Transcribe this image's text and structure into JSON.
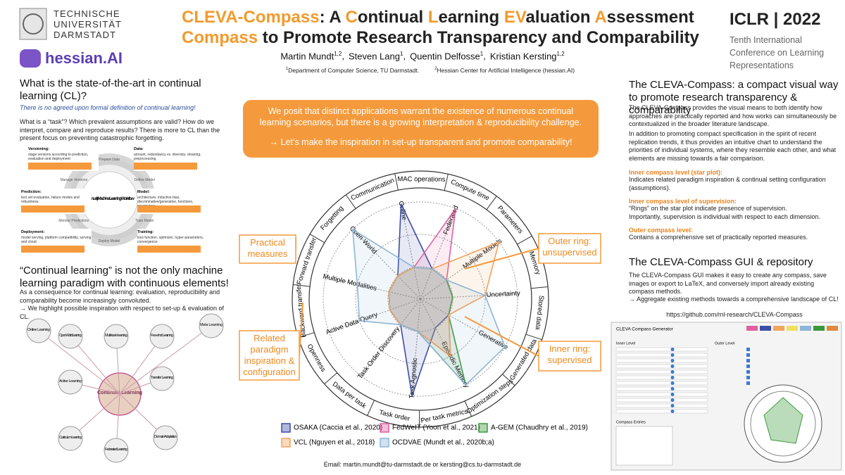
{
  "header": {
    "university": [
      "TECHNISCHE",
      "UNIVERSITÄT",
      "DARMSTADT"
    ],
    "partner": "hessian.AI",
    "title": [
      [
        {
          "text": "CLEVA-Compass",
          "accent": true
        },
        {
          "text": ": A ",
          "accent": false
        },
        {
          "text": "C",
          "accent": true
        },
        {
          "text": "ontinual ",
          "accent": false
        },
        {
          "text": "L",
          "accent": true
        },
        {
          "text": "earning ",
          "accent": false
        },
        {
          "text": "EV",
          "accent": true
        },
        {
          "text": "aluation ",
          "accent": false
        },
        {
          "text": "A",
          "accent": true
        },
        {
          "text": "ssessment",
          "accent": false
        }
      ],
      [
        {
          "text": "Compass",
          "accent": true
        },
        {
          "text": " to Promote Research Transparency and Comparability",
          "accent": false
        }
      ]
    ],
    "accent_color": "#f39a2b",
    "authors": [
      {
        "name": "Martin Mundt",
        "affil": "1,2",
        "sep": ","
      },
      {
        "name": "Steven Lang",
        "affil": "1",
        "sep": ","
      },
      {
        "name": "Quentin Delfosse",
        "affil": "1",
        "sep": ","
      },
      {
        "name": "Kristian Kersting",
        "affil": "1,2"
      }
    ],
    "affiliations": [
      {
        "mark": "1",
        "text": "Department of Computer Science, TU Darmstadt."
      },
      {
        "mark": "2",
        "text": "Hessian Center for Artificial Intelligence (hessian.AI)"
      }
    ],
    "conference": "ICLR | 2022",
    "conference_name": "Tenth International Conference on Learning Representations"
  },
  "left": {
    "heading1": "What is the state-of-the-art in continual learning (CL)?",
    "note": "There is no agreed upon formal definition of continual learning!",
    "paragraph1": "What is a “task”? Which prevalent assumptions are valid? How do we interpret, compare and reproduce results? There is more to CL than the present focus on preventing catastrophic forgetting.",
    "workflow": {
      "center": "(Continual) Machine Learning Workflow",
      "steps": [
        "Manage Versions",
        "Prepare Data",
        "Define Model",
        "Train Model",
        "Deploy Model",
        "Monitor Predictions"
      ],
      "boxes": [
        {
          "head": "Versioning:",
          "text": "stage versions according to prediction, evaluation and deployment"
        },
        {
          "head": "Data:",
          "text": "amount, redundancy vs. diversity, cleaning, preprocessing"
        },
        {
          "head": "Prediction:",
          "text": "test set evaluation, failure modes and robustness"
        },
        {
          "head": "Model:",
          "text": "architecture, inductive bias, discriminative/generative, functions, parameters"
        },
        {
          "head": "Deployment:",
          "text": "model serving, platform compatibility, serving and cloud"
        },
        {
          "head": "Training:",
          "text": "loss function, optimizer, hyper-parameters, convergence"
        }
      ]
    },
    "heading2": "“Continual learning” is not the only machine learning paradigm with continuous elements!",
    "paragraph2": "As a consequence for continual learning: evaluation, reproducibility and comparability become increasingly convoluted.",
    "paragraph3": "→ We highlight possible inspiration with respect to set-up & evaluation of CL.",
    "paradigms": {
      "center": "Continual Learning",
      "nodes": [
        "Online Learning",
        "Open World Learning",
        "Multi-task learning",
        "Few-shot Learning",
        "Meta Learning",
        "Active Learning",
        "Transfer Learning",
        "Curriculum Learning",
        "Domain Adaptation",
        "Federated Learning"
      ]
    }
  },
  "center": {
    "statement": "We posit that distinct applications warrant the existence of numerous continual learning scenarios, but there is a growing interpretation & reproducibility challenge.",
    "call": "→ Let’s make the inspiration in set-up transparent and promote comparability!",
    "callouts": {
      "practical": "Practical measures",
      "related": "Related paradigm inspiration & configuration",
      "outer": "Outer ring: unsupervised",
      "inner": "Inner ring: supervised"
    },
    "compass": {
      "dimensions": [
        "Online",
        "Federated",
        "Multiple Models",
        "Uncertainty",
        "Generative",
        "Episodic Memory",
        "Task Agnostic",
        "Task Order Discovery",
        "Active Data Query",
        "Multiple Modalities",
        "Open World"
      ],
      "measures": [
        "Communication",
        "MAC operations",
        "Compute time",
        "Parameters",
        "Memory",
        "Stored data",
        "Generated data",
        "Optimization steps",
        "Per task metrics",
        "Task order",
        "Data per task",
        "Openness",
        "Backward transfer",
        "Forward transfer",
        "Forgetting"
      ],
      "methods": [
        {
          "name": "OSAKA (Caccia et al., 2020)",
          "color": "#3d4ea8",
          "values": [
            3,
            1,
            1,
            1,
            1,
            1,
            3,
            1,
            1,
            1,
            1
          ]
        },
        {
          "name": "FedWeIT (Yoon et al., 2021)",
          "color": "#e0609f",
          "values": [
            1,
            3,
            1,
            1,
            1,
            2,
            1,
            1,
            1,
            1,
            1
          ]
        },
        {
          "name": "A-GEM (Chaudhry et al., 2019)",
          "color": "#3a9a3a",
          "values": [
            1,
            1,
            1,
            1,
            1,
            3,
            1,
            1,
            1,
            1,
            1
          ]
        },
        {
          "name": "VCL (Nguyen et al., 2018)",
          "color": "#f2a35e",
          "values": [
            1,
            1,
            3,
            2,
            1,
            2,
            1,
            1,
            1,
            1,
            1
          ]
        },
        {
          "name": "OCDVAE (Mundt et al., 2020b;a)",
          "color": "#8db5d6",
          "values": [
            1,
            1,
            1,
            2,
            3,
            3,
            1,
            1,
            2,
            2,
            3
          ]
        }
      ]
    }
  },
  "right": {
    "heading1": "The CLEVA-Compass: a compact visual way to promote research transparency & comparability",
    "paragraph1": "The CLEVA-Compass provides the visual means to both identify how approaches are practically reported and how works can simultaneously be contextualized in the broader literature landscape.",
    "paragraph2": "In addition to promoting compact specification in the spirit of recent replication trends, it thus provides an intuitive chart to understand the priorities of individual systems, where they resemble each other, and what elements are missing towards a fair comparison.",
    "levels": [
      {
        "head": "Inner compass level (star plot):",
        "lines": [
          "Indicates related paradigm inspiration & continual setting configuration (assumptions)."
        ]
      },
      {
        "head": "Inner compass level of supervision:",
        "lines": [
          "“Rings” on the star plot indicate presence of supervision.",
          "Importantly, supervision is individual with respect to each dimension."
        ]
      },
      {
        "head": "Outer compass level:",
        "lines": [
          "Contains a comprehensive set of practically reported measures."
        ]
      }
    ],
    "heading2": "The CLEVA-Compass GUI & repository",
    "paragraph3": "The CLEVA-Compass GUI makes it easy to create any compass, save images or export to LaTeX, and conversely import already existing compass methods.",
    "paragraph4": "→ Aggregate existing methods towards a comprehensive landscape of CL!",
    "url": "https://github.com/ml-research/CLEVA-Compass",
    "gui": {
      "title": "CLEVA Compass Generator",
      "inner": "Inner Level",
      "outer": "Outer Level",
      "entries": "Compass Entries"
    }
  },
  "footer": {
    "email": "Email: martin.mundt@tu-darmstadt.de or kersting@cs.tu-darmstadt.de"
  }
}
